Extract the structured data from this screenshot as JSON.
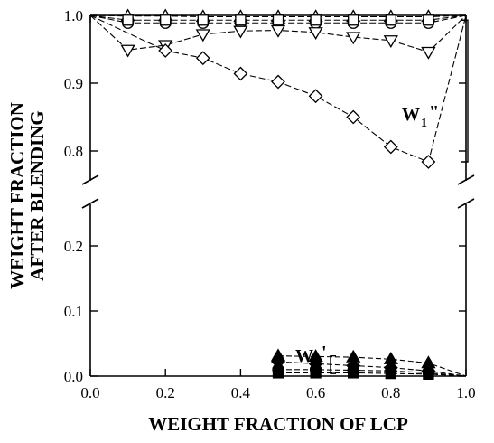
{
  "chart_data": {
    "type": "line",
    "title": "",
    "xlabel": "WEIGHT FRACTION OF LCP",
    "ylabel_lines": [
      "WEIGHT FRACTION",
      "AFTER BLENDING"
    ],
    "xlim": [
      0.0,
      1.0
    ],
    "ylim_lower": [
      0.0,
      0.27
    ],
    "ylim_upper": [
      0.76,
      1.0
    ],
    "axis_break": true,
    "x_ticks": [
      "0.0",
      "0.2",
      "0.4",
      "0.6",
      "0.8",
      "1.0"
    ],
    "y_ticks": [
      "0.0",
      "0.1",
      "0.2",
      "0.8",
      "0.9",
      "1.0"
    ],
    "grid": false,
    "annotations": {
      "upper_group": "W",
      "upper_group_sub": "1",
      "upper_group_mark": "\"",
      "lower_group": "W",
      "lower_group_sub": "2",
      "lower_group_mark": "'"
    },
    "series": [
      {
        "marker": "triangle-up-open",
        "x": [
          0,
          0.1,
          0.2,
          0.3,
          0.4,
          0.5,
          0.6,
          0.7,
          0.8,
          0.9,
          1.0
        ],
        "y": [
          1.0,
          0.999,
          0.999,
          0.998,
          0.998,
          0.998,
          0.998,
          0.998,
          0.998,
          0.998,
          1.0
        ]
      },
      {
        "marker": "circle-open",
        "x": [
          0,
          0.1,
          0.2,
          0.3,
          0.4,
          0.5,
          0.6,
          0.7,
          0.8,
          0.9,
          1.0
        ],
        "y": [
          1.0,
          0.989,
          0.989,
          0.989,
          0.989,
          0.989,
          0.989,
          0.989,
          0.989,
          0.989,
          1.0
        ]
      },
      {
        "marker": "square-open",
        "x": [
          0,
          0.1,
          0.2,
          0.3,
          0.4,
          0.5,
          0.6,
          0.7,
          0.8,
          0.9,
          1.0
        ],
        "y": [
          1.0,
          0.993,
          0.993,
          0.993,
          0.993,
          0.993,
          0.993,
          0.993,
          0.993,
          0.993,
          1.0
        ]
      },
      {
        "marker": "triangle-down-open",
        "x": [
          0,
          0.1,
          0.2,
          0.3,
          0.4,
          0.5,
          0.6,
          0.7,
          0.8,
          0.9,
          1.0
        ],
        "y": [
          1.0,
          0.949,
          0.956,
          0.972,
          0.977,
          0.978,
          0.975,
          0.968,
          0.963,
          0.946,
          1.0
        ]
      },
      {
        "marker": "diamond-open",
        "x": [
          0,
          0.2,
          0.3,
          0.4,
          0.5,
          0.6,
          0.7,
          0.8,
          0.9,
          1.0
        ],
        "y": [
          1.0,
          0.948,
          0.937,
          0.914,
          0.902,
          0.881,
          0.85,
          0.806,
          0.784,
          1.0
        ]
      },
      {
        "marker": "triangle-up-filled",
        "x": [
          0.5,
          0.6,
          0.7,
          0.8,
          0.9,
          1.0
        ],
        "y": [
          0.031,
          0.03,
          0.029,
          0.026,
          0.02,
          0.0
        ]
      },
      {
        "marker": "diamond-filled",
        "x": [
          0.5,
          0.6,
          0.7,
          0.8,
          0.9,
          1.0
        ],
        "y": [
          0.022,
          0.019,
          0.016,
          0.013,
          0.008,
          0.0
        ]
      },
      {
        "marker": "circle-filled",
        "x": [
          0.5,
          0.6,
          0.7,
          0.8,
          0.9,
          1.0
        ],
        "y": [
          0.01,
          0.01,
          0.009,
          0.008,
          0.005,
          0.0
        ]
      },
      {
        "marker": "square-filled",
        "x": [
          0.5,
          0.6,
          0.7,
          0.8,
          0.9,
          1.0
        ],
        "y": [
          0.005,
          0.005,
          0.005,
          0.004,
          0.003,
          0.0
        ]
      }
    ]
  }
}
